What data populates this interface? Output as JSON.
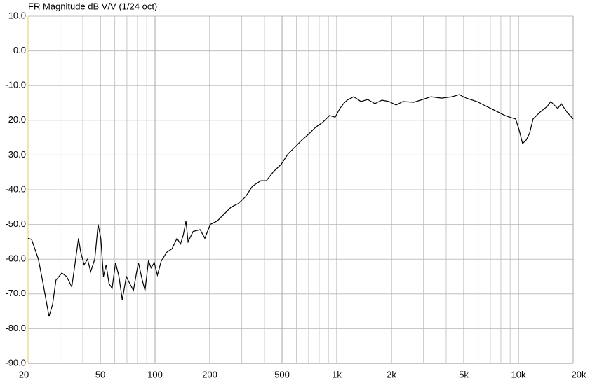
{
  "chart_data": {
    "type": "line",
    "title": "FR Magnitude dB V/V (1/24 oct)",
    "log_x": true,
    "grid": true,
    "xlim": [
      20,
      20000
    ],
    "ylim": [
      -90,
      10
    ],
    "xticks": [
      20,
      50,
      100,
      200,
      500,
      {
        "value": 1000,
        "label": "1k"
      },
      {
        "value": 2000,
        "label": "2k"
      },
      {
        "value": 5000,
        "label": "5k"
      },
      {
        "value": 10000,
        "label": "10k"
      },
      {
        "value": 20000,
        "label": "20k"
      }
    ],
    "minor_xticks": [
      30,
      40,
      60,
      70,
      80,
      90,
      300,
      400,
      600,
      700,
      800,
      900,
      3000,
      4000,
      6000,
      7000,
      8000,
      9000
    ],
    "yticks": [
      {
        "value": 10,
        "label": "10.0"
      },
      {
        "value": 0,
        "label": "0.0"
      },
      {
        "value": -10,
        "label": "-10.0"
      },
      {
        "value": -20,
        "label": "-20.0"
      },
      {
        "value": -30,
        "label": "-30.0"
      },
      {
        "value": -40,
        "label": "-40.0"
      },
      {
        "value": -50,
        "label": "-50.0"
      },
      {
        "value": -60,
        "label": "-60.0"
      },
      {
        "value": -70,
        "label": "-70.0"
      },
      {
        "value": -80,
        "label": "-80.0"
      },
      {
        "value": -90,
        "label": "-90.0"
      }
    ],
    "series": [
      {
        "color": "#000000",
        "x": [
          20,
          20.9,
          22.8,
          24,
          26.1,
          27.3,
          28.5,
          30.7,
          32.6,
          34.8,
          35.9,
          37.9,
          39,
          40.7,
          42.5,
          44.2,
          46.6,
          48.6,
          50.3,
          52,
          53.8,
          55.8,
          58,
          60.6,
          63.3,
          66,
          69.5,
          72.5,
          76,
          79,
          81,
          85,
          88,
          92,
          95,
          99,
          103,
          108,
          116,
          124,
          132,
          138,
          143,
          148,
          152,
          162,
          177,
          188,
          201,
          220,
          240,
          262,
          287,
          315,
          343,
          382,
          410,
          448,
          494,
          539,
          589,
          642,
          700,
          765,
          836,
          913,
          980,
          1040,
          1090,
          1140,
          1240,
          1360,
          1480,
          1620,
          1770,
          1940,
          2120,
          2310,
          2650,
          2890,
          3300,
          3780,
          4320,
          4720,
          5160,
          5910,
          6450,
          7050,
          7710,
          8430,
          9050,
          9640,
          10080,
          10540,
          11020,
          11520,
          12040,
          13170,
          14400,
          15060,
          15740,
          16460,
          17200,
          18460,
          20000
        ],
        "values": [
          -54,
          -54.3,
          -60,
          -66,
          -76.5,
          -73,
          -66,
          -64,
          -65,
          -68,
          -63,
          -54,
          -58,
          -61.6,
          -60,
          -63.6,
          -60,
          -50,
          -54,
          -65,
          -61.6,
          -67,
          -68.4,
          -61,
          -65,
          -71.7,
          -65,
          -67,
          -69,
          -64,
          -61,
          -66,
          -69,
          -60.4,
          -62.5,
          -61,
          -64.6,
          -60.6,
          -58,
          -57,
          -54,
          -55.6,
          -53,
          -49,
          -55,
          -52,
          -51.5,
          -54,
          -50,
          -49,
          -47,
          -45,
          -44,
          -42,
          -39,
          -37.4,
          -37.4,
          -34.8,
          -32.7,
          -29.7,
          -27.7,
          -25.7,
          -24,
          -22,
          -20.6,
          -18.6,
          -19.1,
          -16.6,
          -15.2,
          -14.2,
          -13.2,
          -14.6,
          -14,
          -15.2,
          -14.2,
          -14.6,
          -15.6,
          -14.6,
          -14.8,
          -14.2,
          -13.2,
          -13.6,
          -13.2,
          -12.6,
          -13.6,
          -14.6,
          -15.6,
          -16.6,
          -17.6,
          -18.6,
          -19.2,
          -19.6,
          -22.7,
          -26.7,
          -25.7,
          -23.7,
          -19.6,
          -17.6,
          -16,
          -14.6,
          -15.6,
          -16.6,
          -15.2,
          -17.6,
          -19.6
        ]
      }
    ]
  }
}
